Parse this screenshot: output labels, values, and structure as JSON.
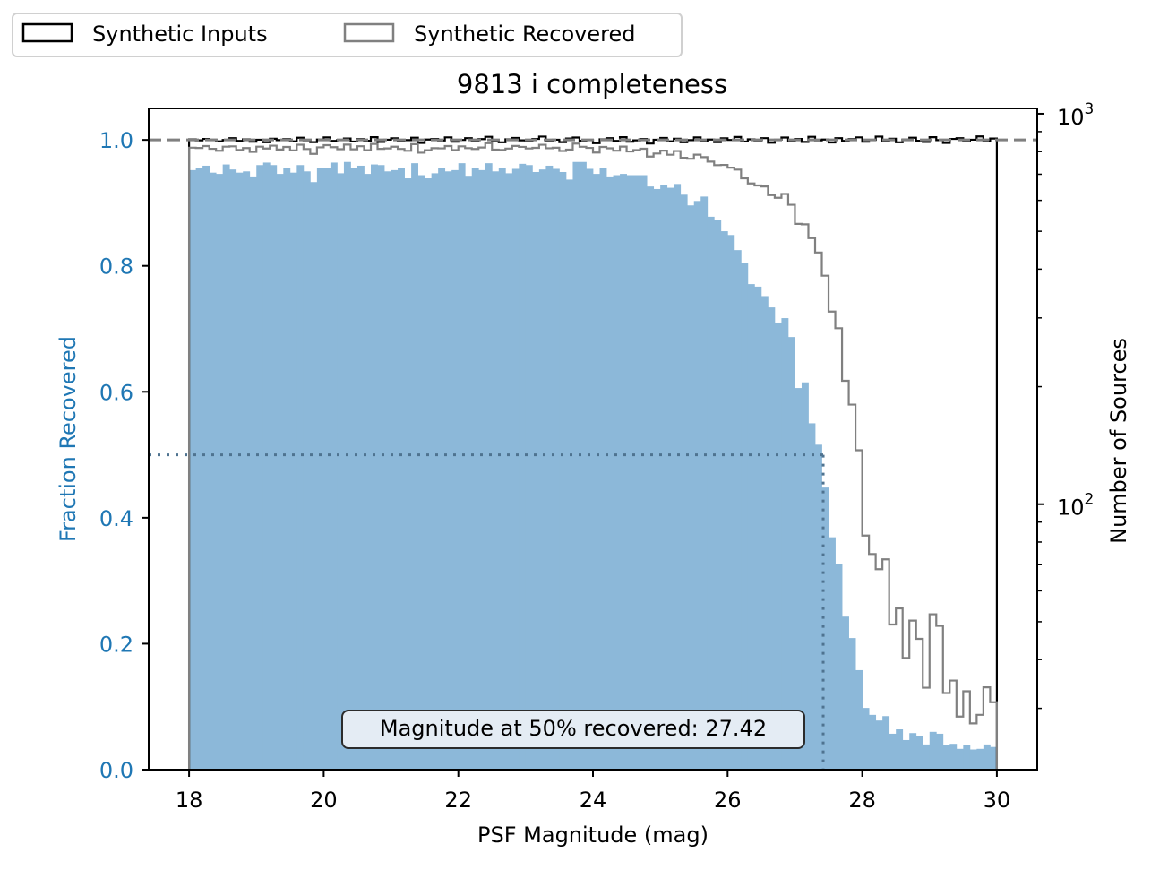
{
  "chart_data": {
    "type": "bar",
    "title": "9813 i completeness",
    "xlabel": "PSF Magnitude (mag)",
    "ylabel": "Fraction Recovered",
    "ylabel_right": "Number of Sources",
    "xlim": [
      17.4,
      30.6
    ],
    "ylim": [
      0,
      1.05
    ],
    "ylim_right": [
      20.9,
      1032
    ],
    "yscale_right": "log",
    "grid": false,
    "legend_placement": "top-left, above axes",
    "xticks": [
      "18",
      "20",
      "22",
      "24",
      "26",
      "28",
      "30"
    ],
    "yticks": [
      "0.0",
      "0.2",
      "0.4",
      "0.6",
      "0.8",
      "1.0"
    ],
    "yticks_right": [
      {
        "base": "10",
        "exp": "2",
        "value": 100
      },
      {
        "base": "10",
        "exp": "3",
        "value": 1000
      }
    ],
    "bin_start": 18.0,
    "bin_width": 0.1,
    "fraction_recovered": [
      0.952,
      0.956,
      0.959,
      0.948,
      0.946,
      0.961,
      0.953,
      0.948,
      0.95,
      0.942,
      0.96,
      0.964,
      0.96,
      0.946,
      0.955,
      0.948,
      0.96,
      0.95,
      0.933,
      0.955,
      0.955,
      0.964,
      0.947,
      0.965,
      0.955,
      0.959,
      0.946,
      0.961,
      0.96,
      0.95,
      0.952,
      0.955,
      0.939,
      0.963,
      0.944,
      0.939,
      0.947,
      0.955,
      0.95,
      0.952,
      0.963,
      0.943,
      0.956,
      0.952,
      0.963,
      0.95,
      0.956,
      0.947,
      0.954,
      0.962,
      0.96,
      0.949,
      0.953,
      0.959,
      0.954,
      0.949,
      0.937,
      0.965,
      0.965,
      0.954,
      0.946,
      0.956,
      0.942,
      0.944,
      0.946,
      0.944,
      0.944,
      0.944,
      0.926,
      0.922,
      0.928,
      0.924,
      0.93,
      0.913,
      0.896,
      0.903,
      0.91,
      0.878,
      0.873,
      0.855,
      0.849,
      0.825,
      0.805,
      0.771,
      0.767,
      0.752,
      0.734,
      0.71,
      0.717,
      0.687,
      0.606,
      0.615,
      0.55,
      0.516,
      0.448,
      0.369,
      0.326,
      0.243,
      0.209,
      0.158,
      0.098,
      0.087,
      0.078,
      0.085,
      0.057,
      0.064,
      0.047,
      0.058,
      0.053,
      0.04,
      0.06,
      0.057,
      0.039,
      0.041,
      0.033,
      0.039,
      0.032,
      0.033,
      0.04,
      0.036
    ],
    "series": [
      {
        "name": "Synthetic Inputs",
        "color": "#000000",
        "counts": [
          860,
          855,
          862,
          858,
          850,
          857,
          866,
          852,
          860,
          848,
          858,
          845,
          863,
          856,
          861,
          850,
          868,
          855,
          846,
          859,
          870,
          852,
          857,
          864,
          849,
          861,
          853,
          871,
          847,
          858,
          865,
          851,
          856,
          868,
          842,
          859,
          862,
          854,
          870,
          848,
          857,
          866,
          850,
          861,
          873,
          852,
          845,
          860,
          867,
          855,
          849,
          862,
          874,
          851,
          858,
          846,
          864,
          869,
          853,
          857,
          841,
          860,
          866,
          852,
          871,
          848,
          855,
          862,
          839,
          858,
          867,
          850,
          863,
          845,
          856,
          870,
          851,
          859,
          846,
          865,
          857,
          872,
          849,
          860,
          854,
          866,
          843,
          858,
          869,
          851,
          862,
          847,
          873,
          855,
          859,
          844,
          866,
          852,
          861,
          870,
          848,
          857,
          874,
          850,
          863,
          845,
          859,
          868,
          853,
          847,
          871,
          856,
          842,
          862,
          866,
          851,
          858,
          875,
          849,
          864
        ]
      },
      {
        "name": "Synthetic Recovered",
        "color": "#808080"
      }
    ],
    "fraction_color": "#1f77b4",
    "bar_color": "#8cb8d9",
    "reference_line": {
      "value": 1.0,
      "style": "dashed",
      "color": "#808080"
    },
    "magnitude_50": 27.42,
    "annotation": "Magnitude at 50% recovered: 27.42"
  }
}
